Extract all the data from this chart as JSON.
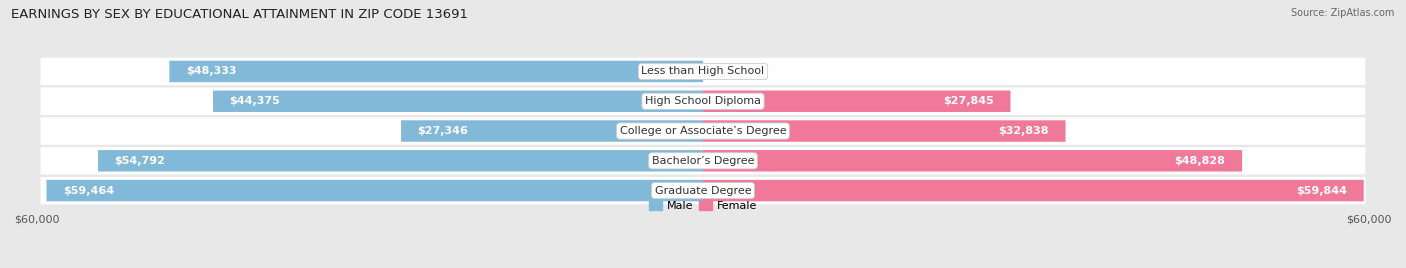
{
  "title": "EARNINGS BY SEX BY EDUCATIONAL ATTAINMENT IN ZIP CODE 13691",
  "source": "Source: ZipAtlas.com",
  "categories": [
    "Less than High School",
    "High School Diploma",
    "College or Associate’s Degree",
    "Bachelor’s Degree",
    "Graduate Degree"
  ],
  "male_values": [
    48333,
    44375,
    27346,
    54792,
    59464
  ],
  "female_values": [
    0,
    27845,
    32838,
    48828,
    59844
  ],
  "max_value": 60000,
  "male_color": "#82b8d8",
  "female_color": "#f07898",
  "male_label": "Male",
  "female_label": "Female",
  "bg_color": "#e8e8e8",
  "row_bg": "#f5f5f5",
  "axis_label": "$60,000",
  "title_fontsize": 9.5,
  "bar_fontsize": 8,
  "label_fontsize": 8,
  "source_fontsize": 7
}
